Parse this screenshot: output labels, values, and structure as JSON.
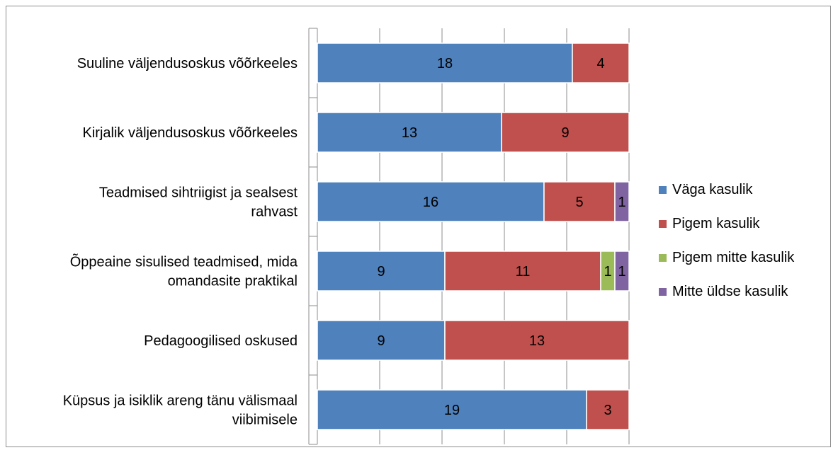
{
  "chart_data": {
    "type": "bar",
    "orientation": "horizontal",
    "stacked": true,
    "categories": [
      [
        "Suuline väljendusoskus võõrkeeles"
      ],
      [
        "Kirjalik väljendusoskus võõrkeeles"
      ],
      [
        "Teadmised sihtriigist ja sealsest",
        "rahvast"
      ],
      [
        "Õppeaine sisulised teadmised, mida",
        "omandasite praktikal"
      ],
      [
        "Pedagoogilised oskused"
      ],
      [
        "Küpsus ja isiklik areng tänu välismaal",
        "viibimisele"
      ]
    ],
    "series": [
      {
        "name": "Väga kasulik",
        "color": "#4F81BD",
        "values": [
          18,
          13,
          16,
          9,
          9,
          19
        ]
      },
      {
        "name": "Pigem kasulik",
        "color": "#C0504D",
        "values": [
          4,
          9,
          5,
          11,
          13,
          3
        ]
      },
      {
        "name": "Pigem mitte kasulik",
        "color": "#9BBB59",
        "values": [
          0,
          0,
          0,
          1,
          0,
          0
        ]
      },
      {
        "name": "Mitte üldse kasulik",
        "color": "#8064A2",
        "values": [
          0,
          0,
          1,
          1,
          0,
          0
        ]
      }
    ],
    "xlim": [
      0,
      22
    ],
    "grid": true,
    "legend": "right"
  }
}
